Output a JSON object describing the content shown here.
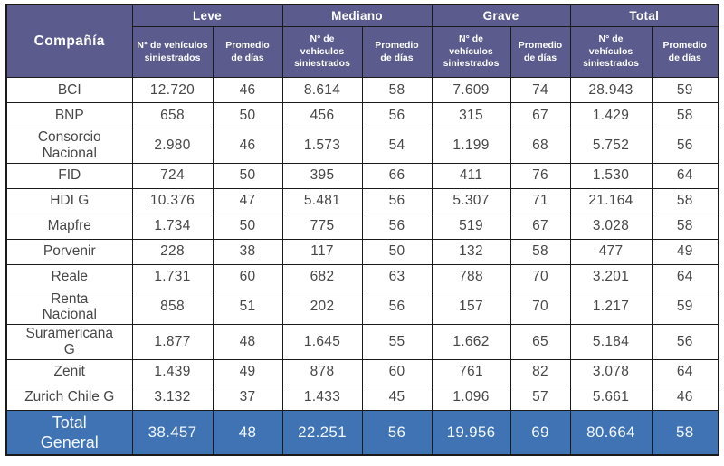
{
  "colors": {
    "header_bg": "#5B5C8D",
    "total_row_bg": "#3F73B4",
    "grid": "#1A1A1A",
    "body_text": "#474747",
    "header_text": "#FFFFFF"
  },
  "table": {
    "company_header": "Compañía",
    "groups": [
      {
        "label": "Leve",
        "vehicles_header": "N° de vehículos\nsiniestrados",
        "days_header": "Promedio\nde días"
      },
      {
        "label": "Mediano",
        "vehicles_header": "N° de\nvehículos\nsiniestrados",
        "days_header": "Promedio\nde días"
      },
      {
        "label": "Grave",
        "vehicles_header": "N° de\nvehículos\nsiniestrados",
        "days_header": "Promedio\nde días"
      },
      {
        "label": "Total",
        "vehicles_header": "N° de\nvehículos\nsiniestrados",
        "days_header": "Promedio\nde días"
      }
    ],
    "rows": [
      {
        "company": "BCI",
        "values": [
          "12.720",
          "46",
          "8.614",
          "58",
          "7.609",
          "74",
          "28.943",
          "59"
        ]
      },
      {
        "company": "BNP",
        "values": [
          "658",
          "50",
          "456",
          "56",
          "315",
          "67",
          "1.429",
          "58"
        ]
      },
      {
        "company": "Consorcio\nNacional",
        "values": [
          "2.980",
          "46",
          "1.573",
          "54",
          "1.199",
          "68",
          "5.752",
          "56"
        ]
      },
      {
        "company": "FID",
        "values": [
          "724",
          "50",
          "395",
          "66",
          "411",
          "76",
          "1.530",
          "64"
        ]
      },
      {
        "company": "HDI G",
        "values": [
          "10.376",
          "47",
          "5.481",
          "56",
          "5.307",
          "71",
          "21.164",
          "58"
        ]
      },
      {
        "company": "Mapfre",
        "values": [
          "1.734",
          "50",
          "775",
          "56",
          "519",
          "67",
          "3.028",
          "58"
        ]
      },
      {
        "company": "Porvenir",
        "values": [
          "228",
          "38",
          "117",
          "50",
          "132",
          "58",
          "477",
          "49"
        ]
      },
      {
        "company": "Reale",
        "values": [
          "1.731",
          "60",
          "682",
          "63",
          "788",
          "70",
          "3.201",
          "64"
        ]
      },
      {
        "company": "Renta\nNacional",
        "values": [
          "858",
          "51",
          "202",
          "56",
          "157",
          "70",
          "1.217",
          "59"
        ]
      },
      {
        "company": "Suramericana\nG",
        "values": [
          "1.877",
          "48",
          "1.645",
          "55",
          "1.662",
          "65",
          "5.184",
          "56"
        ]
      },
      {
        "company": "Zenit",
        "values": [
          "1.439",
          "49",
          "878",
          "60",
          "761",
          "82",
          "3.078",
          "64"
        ]
      },
      {
        "company": "Zurich Chile G",
        "values": [
          "3.132",
          "37",
          "1.433",
          "45",
          "1.096",
          "57",
          "5.661",
          "46"
        ]
      }
    ],
    "total_row": {
      "label": "Total\nGeneral",
      "values": [
        "38.457",
        "48",
        "22.251",
        "56",
        "19.956",
        "69",
        "80.664",
        "58"
      ]
    }
  },
  "chart_data": {
    "type": "table",
    "column_groups": [
      "Leve",
      "Mediano",
      "Grave",
      "Total"
    ],
    "columns": [
      "Compañía",
      "Leve - N° de vehículos siniestrados",
      "Leve - Promedio de días",
      "Mediano - N° de vehículos siniestrados",
      "Mediano - Promedio de días",
      "Grave - N° de vehículos siniestrados",
      "Grave - Promedio de días",
      "Total - N° de vehículos siniestrados",
      "Total - Promedio de días"
    ],
    "rows": [
      [
        "BCI",
        12720,
        46,
        8614,
        58,
        7609,
        74,
        28943,
        59
      ],
      [
        "BNP",
        658,
        50,
        456,
        56,
        315,
        67,
        1429,
        58
      ],
      [
        "Consorcio Nacional",
        2980,
        46,
        1573,
        54,
        1199,
        68,
        5752,
        56
      ],
      [
        "FID",
        724,
        50,
        395,
        66,
        411,
        76,
        1530,
        64
      ],
      [
        "HDI G",
        10376,
        47,
        5481,
        56,
        5307,
        71,
        21164,
        58
      ],
      [
        "Mapfre",
        1734,
        50,
        775,
        56,
        519,
        67,
        3028,
        58
      ],
      [
        "Porvenir",
        228,
        38,
        117,
        50,
        132,
        58,
        477,
        49
      ],
      [
        "Reale",
        1731,
        60,
        682,
        63,
        788,
        70,
        3201,
        64
      ],
      [
        "Renta Nacional",
        858,
        51,
        202,
        56,
        157,
        70,
        1217,
        59
      ],
      [
        "Suramericana G",
        1877,
        48,
        1645,
        55,
        1662,
        65,
        5184,
        56
      ],
      [
        "Zenit",
        1439,
        49,
        878,
        60,
        761,
        82,
        3078,
        64
      ],
      [
        "Zurich Chile G",
        3132,
        37,
        1433,
        45,
        1096,
        57,
        5661,
        46
      ]
    ],
    "total_row": [
      "Total General",
      38457,
      48,
      22251,
      56,
      19956,
      69,
      80664,
      58
    ]
  }
}
